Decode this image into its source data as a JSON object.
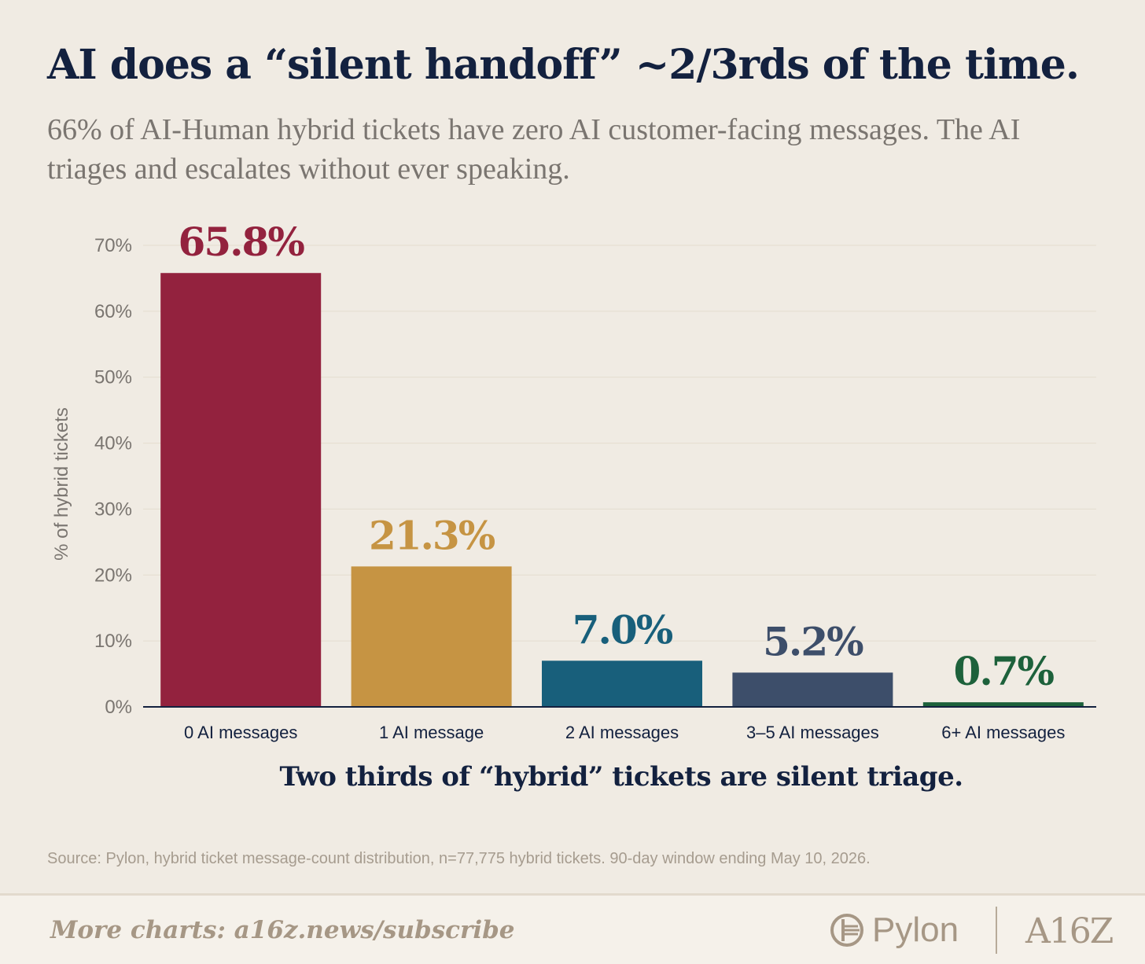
{
  "title": "AI does a “silent handoff” ~2/3rds of the time.",
  "subtitle": "66% of AI-Human hybrid tickets have zero AI customer-facing messages. The AI triages and escalates without ever speaking.",
  "takeaway": "Two thirds of “hybrid” tickets are silent triage.",
  "source": "Source: Pylon, hybrid ticket message-count distribution, n=77,775 hybrid tickets. 90-day window ending May 10, 2026.",
  "footer": {
    "more_charts": "More charts: a16z.news/subscribe",
    "brand1": "Pylon",
    "brand2": "A16Z"
  },
  "chart_data": {
    "type": "bar",
    "categories": [
      "0 AI messages",
      "1 AI message",
      "2 AI messages",
      "3–5 AI messages",
      "6+ AI messages"
    ],
    "values": [
      65.8,
      21.3,
      7.0,
      5.2,
      0.7
    ],
    "data_labels": [
      "65.8%",
      "21.3%",
      "7.0%",
      "5.2%",
      "0.7%"
    ],
    "colors": [
      "#93223e",
      "#c69443",
      "#185f7b",
      "#3d4e6a",
      "#1d613b"
    ],
    "ylabel": "% of hybrid tickets",
    "xlabel": "",
    "ylim": [
      0,
      70
    ],
    "yticks": [
      0,
      10,
      20,
      30,
      40,
      50,
      60,
      70
    ],
    "ytick_labels": [
      "0%",
      "10%",
      "20%",
      "30%",
      "40%",
      "50%",
      "60%",
      "70%"
    ],
    "grid": true
  }
}
